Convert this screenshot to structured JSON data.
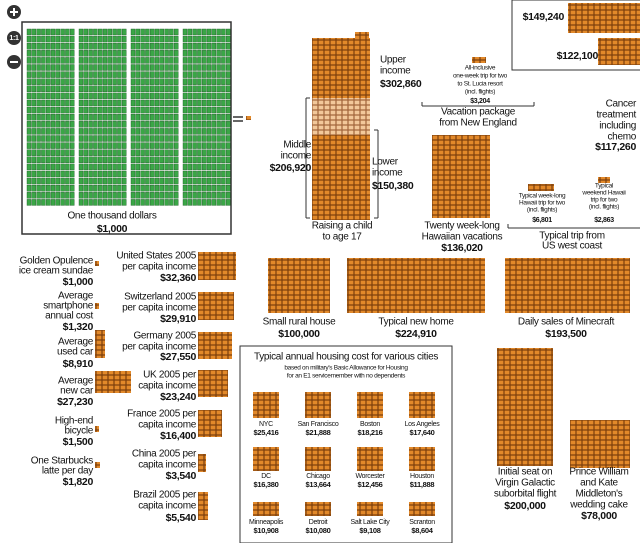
{
  "zoom_controls": {
    "reset": "1:1"
  },
  "items": [
    {
      "label": [
        "One thousand dollars"
      ],
      "value": "$1,000"
    },
    {
      "label": [
        "Upper",
        "income"
      ],
      "value": "$302,860"
    },
    {
      "label": [
        "Middle",
        "income"
      ],
      "value": "$206,920"
    },
    {
      "label": [
        "Lower",
        "income"
      ],
      "value": "$150,380"
    },
    {
      "label": [
        "Raising a child",
        "to age 17"
      ]
    },
    {
      "label": [
        "All-inclusive",
        "one-week trip for two",
        "to St. Lucia resort",
        "(incl. flights)"
      ],
      "value": "$3,204"
    },
    {
      "label": [
        "Vacation package",
        "from New England"
      ]
    },
    {
      "label": [
        "Twenty week-long",
        "Hawaiian vacations"
      ],
      "value": "$136,020"
    },
    {
      "label": [
        "Typical week-long",
        "Hawaii trip for two",
        "(incl. flights)"
      ],
      "value": "$6,801"
    },
    {
      "label": [
        "Typical",
        "weekend Hawaii",
        "trip for two",
        "(incl. flights)"
      ],
      "value": "$2,863"
    },
    {
      "label": [
        "Typical trip from",
        "US west coast"
      ]
    },
    {
      "value": "$149,240"
    },
    {
      "value": "$122,100"
    },
    {
      "label": [
        "Cancer",
        "treatment",
        "including",
        "chemo"
      ],
      "value": "$117,260"
    },
    {
      "label": [
        "Golden Opulence",
        "ice cream sundae"
      ],
      "value": "$1,000"
    },
    {
      "label": [
        "Average",
        "smartphone",
        "annual cost"
      ],
      "value": "$1,320"
    },
    {
      "label": [
        "Average",
        "used car"
      ],
      "value": "$8,910"
    },
    {
      "label": [
        "Average",
        "new car"
      ],
      "value": "$27,230"
    },
    {
      "label": [
        "High-end",
        "bicycle"
      ],
      "value": "$1,500"
    },
    {
      "label": [
        "One Starbucks",
        "latte per day"
      ],
      "value": "$1,820"
    },
    {
      "label": [
        "United States 2005",
        "per capita income"
      ],
      "value": "$32,360"
    },
    {
      "label": [
        "Switzerland 2005",
        "per capita income"
      ],
      "value": "$29,910"
    },
    {
      "label": [
        "Germany 2005",
        "per capita income"
      ],
      "value": "$27,550"
    },
    {
      "label": [
        "UK 2005 per",
        "capita income"
      ],
      "value": "$23,240"
    },
    {
      "label": [
        "France 2005 per",
        "capita income"
      ],
      "value": "$16,400"
    },
    {
      "label": [
        "China 2005 per",
        "capita income"
      ],
      "value": "$3,540"
    },
    {
      "label": [
        "Brazil 2005 per",
        "capita income"
      ],
      "value": "$5,540"
    },
    {
      "label": [
        "Small rural house"
      ],
      "value": "$100,000"
    },
    {
      "label": [
        "Typical new home"
      ],
      "value": "$224,910"
    },
    {
      "label": [
        "Daily sales of Minecraft"
      ],
      "value": "$193,500"
    },
    {
      "label": [
        "Initial seat on",
        "Virgin Galactic",
        "suborbital flight"
      ],
      "value": "$200,000"
    },
    {
      "label": [
        "Prince William",
        "and Kate",
        "Middleton's",
        "wedding cake"
      ],
      "value": "$78,000"
    }
  ],
  "housing": {
    "title": "Typical annual housing cost for various cities",
    "subtitle": [
      "based on military's Basic Allowance for Housing",
      "for an E1 servicemember with no dependents"
    ],
    "cities": [
      {
        "name": "NYC",
        "value": "$25,416"
      },
      {
        "name": "San Francisco",
        "value": "$21,888"
      },
      {
        "name": "Boston",
        "value": "$18,216"
      },
      {
        "name": "Los Angeles",
        "value": "$17,640"
      },
      {
        "name": "DC",
        "value": "$16,380"
      },
      {
        "name": "Chicago",
        "value": "$13,664"
      },
      {
        "name": "Worcester",
        "value": "$12,456"
      },
      {
        "name": "Houston",
        "value": "$11,888"
      },
      {
        "name": "Minneapolis",
        "value": "$10,908"
      },
      {
        "name": "Detroit",
        "value": "$10,080"
      },
      {
        "name": "Salt Lake City",
        "value": "$9,108"
      },
      {
        "name": "Scranton",
        "value": "$8,604"
      }
    ]
  }
}
